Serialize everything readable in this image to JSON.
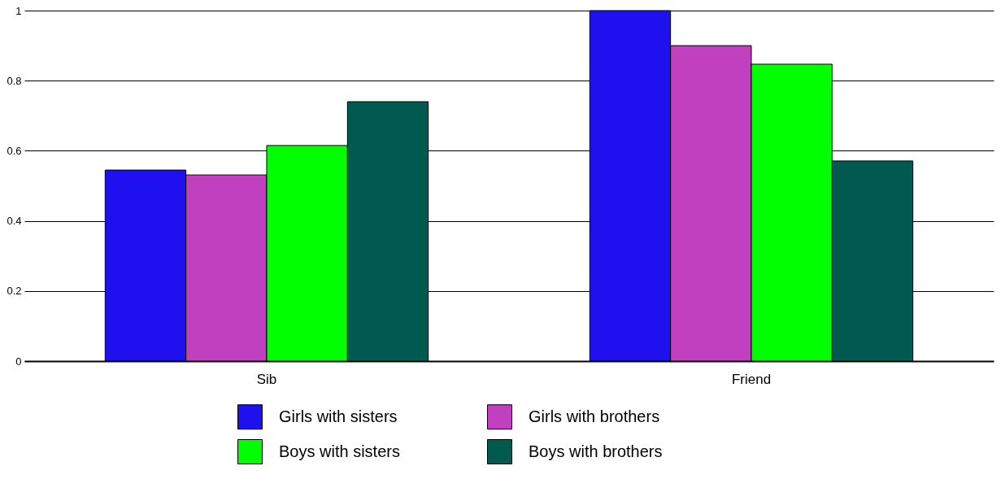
{
  "chart_data": {
    "type": "bar",
    "categories": [
      "Sib",
      "Friend"
    ],
    "series": [
      {
        "name": "Girls with sisters",
        "color": "#1f10ef",
        "values": [
          0.545,
          1.0
        ]
      },
      {
        "name": "Girls with brothers",
        "color": "#c040c0",
        "values": [
          0.531,
          0.9
        ]
      },
      {
        "name": "Boys with sisters",
        "color": "#00ff00",
        "values": [
          0.615,
          0.847
        ]
      },
      {
        "name": "Boys with brothers",
        "color": "#005a50",
        "values": [
          0.74,
          0.571
        ]
      }
    ],
    "ylim": [
      0,
      1
    ],
    "yticks": [
      0,
      0.2,
      0.4,
      0.6,
      0.8,
      1
    ],
    "grid": "y",
    "legend": "bottom"
  }
}
